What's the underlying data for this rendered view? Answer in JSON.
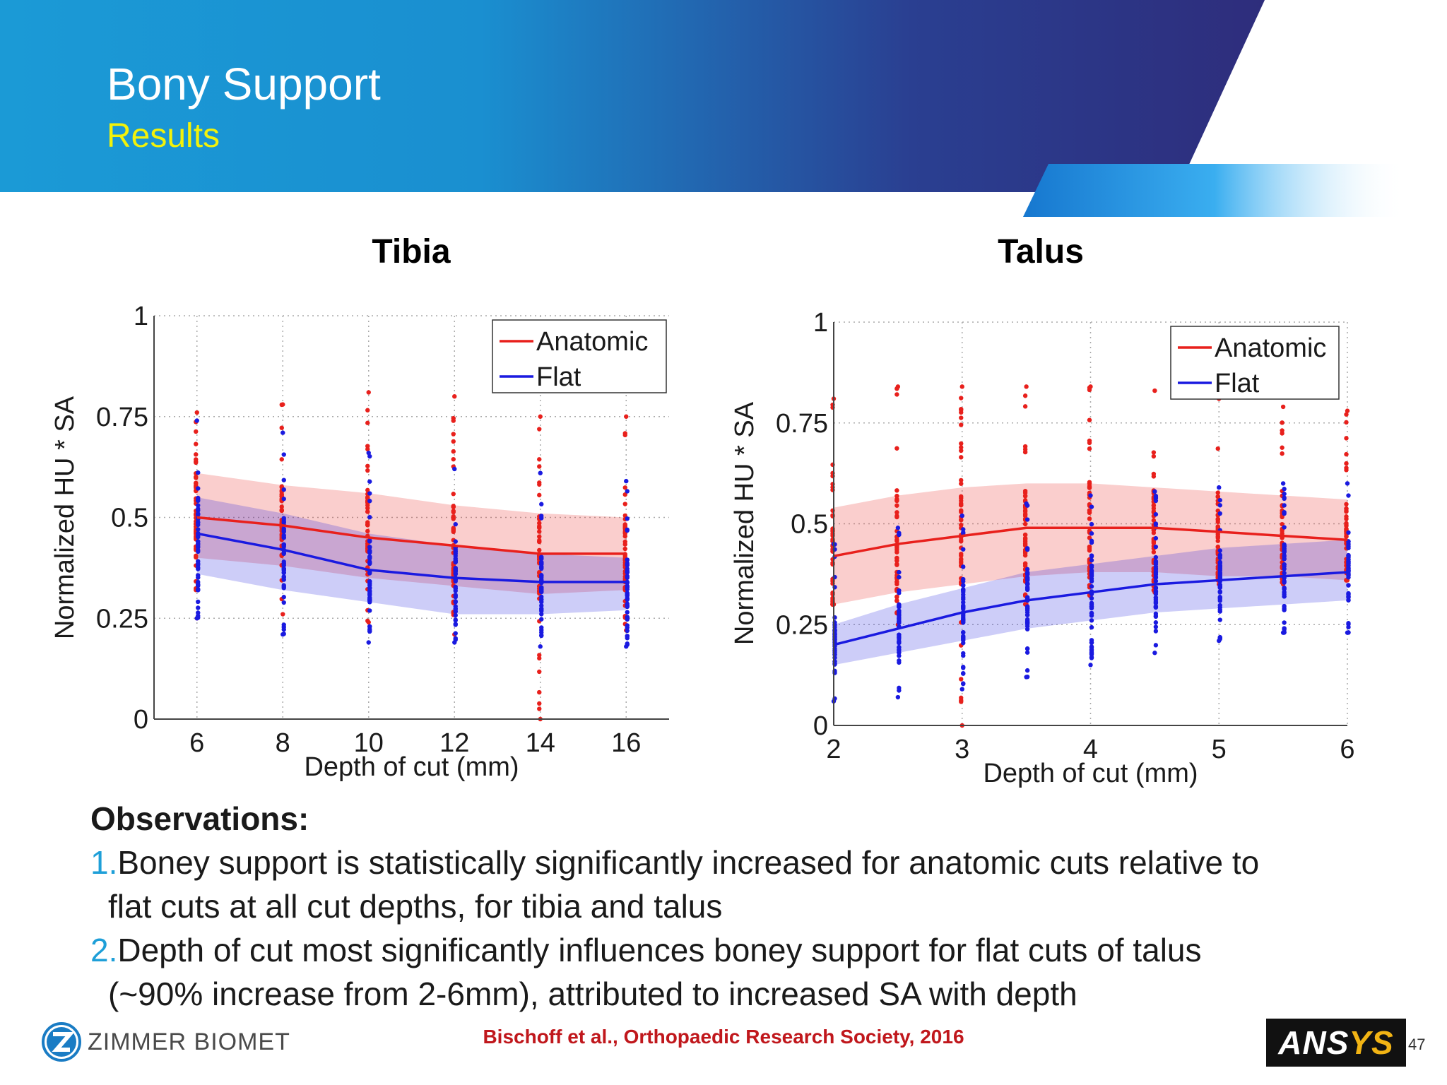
{
  "header": {
    "title": "Bony Support",
    "subtitle": "Results"
  },
  "colors": {
    "header_blue_light": "#1b9ad6",
    "header_blue_dark": "#2e2d7c",
    "subtitle_yellow": "#f2f20a",
    "anatomic": "#e8201c",
    "flat": "#1a1ae0",
    "citation_red": "#c0171c",
    "obs_number_blue": "#1e9fd8"
  },
  "chart_data": [
    {
      "type": "line",
      "title": "Tibia",
      "xlabel": "Depth of cut (mm)",
      "ylabel": "Normalized HU * SA",
      "xlim": [
        5,
        17
      ],
      "ylim": [
        0,
        1
      ],
      "xticks": [
        "6",
        "8",
        "10",
        "12",
        "14",
        "16"
      ],
      "yticks": [
        "0",
        "0.25",
        "0.5",
        "0.75",
        "1"
      ],
      "grid": true,
      "legend": "top-right",
      "x": [
        6,
        8,
        10,
        12,
        14,
        16
      ],
      "series": [
        {
          "name": "Anatomic",
          "color": "#e8201c",
          "values": [
            0.5,
            0.48,
            0.45,
            0.43,
            0.41,
            0.41
          ],
          "band_upper": [
            0.61,
            0.58,
            0.56,
            0.53,
            0.51,
            0.5
          ],
          "band_lower": [
            0.4,
            0.38,
            0.35,
            0.33,
            0.31,
            0.32
          ],
          "point_range_upper": [
            0.76,
            0.78,
            0.81,
            0.8,
            0.75,
            0.75
          ],
          "point_range_lower": [
            0.25,
            0.26,
            0.24,
            0.21,
            0.0,
            0.22
          ]
        },
        {
          "name": "Flat",
          "color": "#1a1ae0",
          "values": [
            0.46,
            0.42,
            0.37,
            0.35,
            0.34,
            0.34
          ],
          "band_upper": [
            0.55,
            0.51,
            0.46,
            0.43,
            0.41,
            0.4
          ],
          "band_lower": [
            0.36,
            0.32,
            0.29,
            0.26,
            0.26,
            0.27
          ],
          "point_range_upper": [
            0.74,
            0.71,
            0.66,
            0.62,
            0.61,
            0.59
          ],
          "point_range_lower": [
            0.25,
            0.21,
            0.19,
            0.19,
            0.18,
            0.18
          ]
        }
      ]
    },
    {
      "type": "line",
      "title": "Talus",
      "xlabel": "Depth of cut (mm)",
      "ylabel": "Normalized HU * SA",
      "xlim": [
        2,
        6
      ],
      "ylim": [
        0,
        1
      ],
      "xticks": [
        "2",
        "3",
        "4",
        "5",
        "6"
      ],
      "yticks": [
        "0",
        "0.25",
        "0.5",
        "0.75",
        "1"
      ],
      "grid": true,
      "legend": "top-right",
      "x": [
        2,
        2.5,
        3,
        3.5,
        4,
        4.5,
        5,
        5.5,
        6
      ],
      "series": [
        {
          "name": "Anatomic",
          "color": "#e8201c",
          "values": [
            0.42,
            0.45,
            0.47,
            0.49,
            0.49,
            0.49,
            0.48,
            0.47,
            0.46
          ],
          "band_upper": [
            0.54,
            0.57,
            0.59,
            0.6,
            0.6,
            0.59,
            0.58,
            0.57,
            0.56
          ],
          "band_lower": [
            0.3,
            0.33,
            0.35,
            0.37,
            0.38,
            0.38,
            0.37,
            0.37,
            0.36
          ],
          "point_range_upper": [
            0.81,
            0.84,
            0.84,
            0.84,
            0.84,
            0.83,
            0.81,
            0.79,
            0.78
          ],
          "point_range_lower": [
            0.3,
            0.25,
            0.0,
            0.3,
            0.32,
            0.33,
            0.35,
            0.35,
            0.36
          ]
        },
        {
          "name": "Flat",
          "color": "#1a1ae0",
          "values": [
            0.2,
            0.24,
            0.28,
            0.31,
            0.33,
            0.35,
            0.36,
            0.37,
            0.38
          ],
          "band_upper": [
            0.25,
            0.3,
            0.34,
            0.38,
            0.4,
            0.42,
            0.44,
            0.45,
            0.46
          ],
          "band_lower": [
            0.15,
            0.18,
            0.21,
            0.24,
            0.26,
            0.28,
            0.29,
            0.3,
            0.31
          ],
          "point_range_upper": [
            0.45,
            0.49,
            0.52,
            0.55,
            0.57,
            0.58,
            0.59,
            0.6,
            0.6
          ],
          "point_range_lower": [
            0.06,
            0.07,
            0.09,
            0.12,
            0.15,
            0.18,
            0.21,
            0.23,
            0.23
          ]
        }
      ]
    }
  ],
  "observations": {
    "heading": "Observations:",
    "items": [
      {
        "number": "1.",
        "line1": "Boney support is statistically significantly increased for anatomic cuts relative to",
        "line2": "flat cuts at all cut depths, for tibia and talus"
      },
      {
        "number": "2.",
        "line1": "Depth of cut most significantly influences boney support for flat cuts of talus",
        "line2": "(~90% increase from 2-6mm), attributed to increased SA with depth"
      }
    ]
  },
  "citation": "Bischoff et al., Orthopaedic Research Society, 2016",
  "logos": {
    "left": "ZIMMER BIOMET",
    "left_icon": "zimmer-biomet-z-logo",
    "right": "ANSYS"
  },
  "page_number": "47"
}
